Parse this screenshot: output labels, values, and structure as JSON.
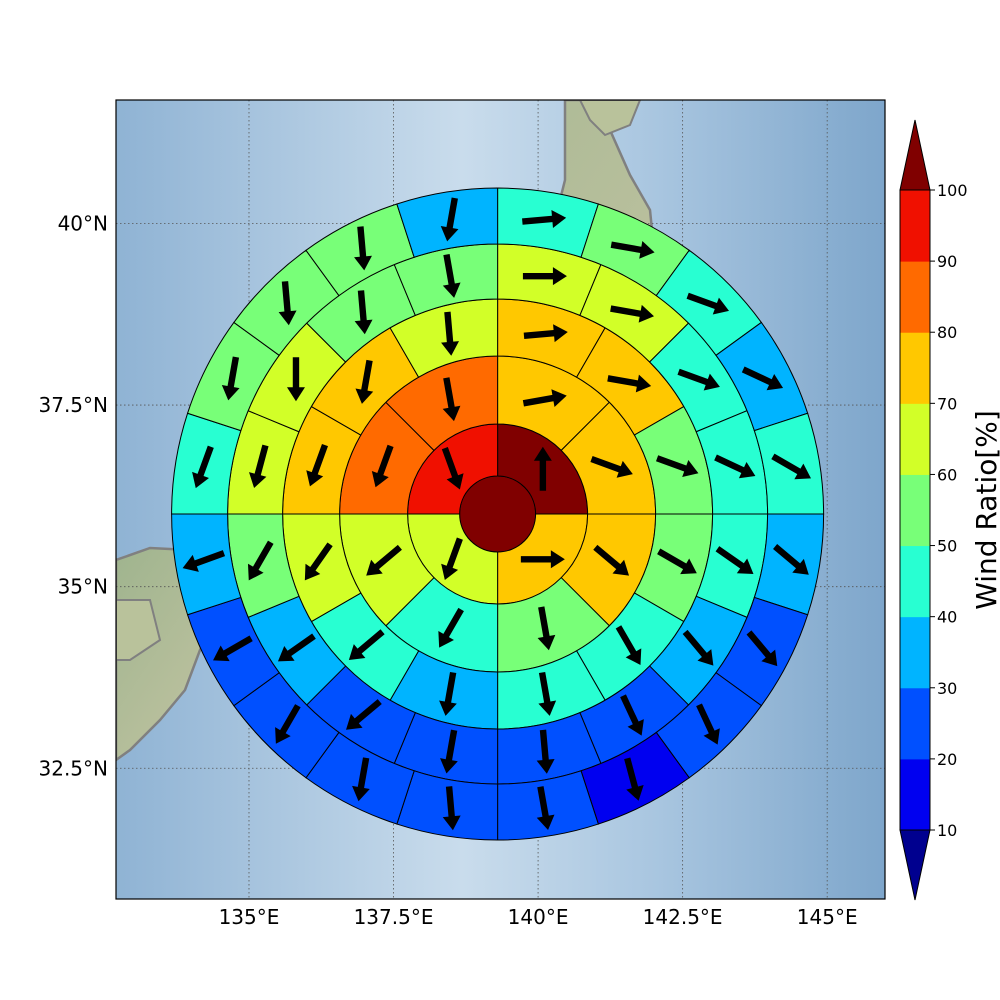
{
  "map": {
    "lon_ticks": [
      "135°E",
      "137.5°E",
      "140°E",
      "142.5°E",
      "145°E"
    ],
    "lat_ticks": [
      "40°N",
      "37.5°N",
      "35°N",
      "32.5°N"
    ],
    "lon_tick_values": [
      135,
      137.5,
      140,
      142.5,
      145
    ],
    "lat_tick_values": [
      40,
      37.5,
      35,
      32.5
    ],
    "lon_range": [
      132.7,
      146.0
    ],
    "lat_range": [
      30.7,
      41.7
    ],
    "center": {
      "lon": 139.3,
      "lat": 36.0
    }
  },
  "colorbar": {
    "label": "Wind Ratio[%]",
    "ticks": [
      "10",
      "20",
      "30",
      "40",
      "50",
      "60",
      "70",
      "80",
      "90",
      "100"
    ],
    "levels": [
      {
        "from": 10,
        "to": 20,
        "color": "#0000f0"
      },
      {
        "from": 20,
        "to": 30,
        "color": "#0050ff"
      },
      {
        "from": 30,
        "to": 40,
        "color": "#00b4ff"
      },
      {
        "from": 40,
        "to": 50,
        "color": "#28ffd2"
      },
      {
        "from": 50,
        "to": 60,
        "color": "#78ff78"
      },
      {
        "from": 60,
        "to": 70,
        "color": "#d2ff28"
      },
      {
        "from": 70,
        "to": 80,
        "color": "#ffc800"
      },
      {
        "from": 80,
        "to": 90,
        "color": "#ff6a00"
      },
      {
        "from": 90,
        "to": 100,
        "color": "#f01000"
      }
    ],
    "over_color": "#800000",
    "under_color": "#00008f"
  },
  "rings": [
    {
      "sectors": 1,
      "colors": [
        "#800000"
      ],
      "arrows": []
    },
    {
      "sectors": 4,
      "colors": [
        "#800000",
        "#ffc800",
        "#d2ff28",
        "#f01000"
      ],
      "arrows": [
        0,
        90,
        200,
        160
      ]
    },
    {
      "sectors": 8,
      "colors": [
        "#ffc800",
        "#ffc800",
        "#ffc800",
        "#78ff78",
        "#28ffd2",
        "#d2ff28",
        "#ff6a00",
        "#ff6a00"
      ],
      "arrows": [
        80,
        110,
        130,
        170,
        210,
        230,
        200,
        170
      ]
    },
    {
      "sectors": 12,
      "colors": [
        "#ffc800",
        "#ffc800",
        "#78ff78",
        "#78ff78",
        "#28ffd2",
        "#28ffd2",
        "#00b4ff",
        "#28ffd2",
        "#d2ff28",
        "#ffc800",
        "#ffc800",
        "#d2ff28"
      ],
      "arrows": [
        85,
        100,
        110,
        120,
        150,
        170,
        190,
        230,
        215,
        200,
        190,
        175
      ]
    },
    {
      "sectors": 16,
      "colors": [
        "#d2ff28",
        "#d2ff28",
        "#28ffd2",
        "#28ffd2",
        "#28ffd2",
        "#00b4ff",
        "#0050ff",
        "#0050ff",
        "#0050ff",
        "#0050ff",
        "#00b4ff",
        "#78ff78",
        "#d2ff28",
        "#d2ff28",
        "#78ff78",
        "#78ff78"
      ],
      "arrows": [
        90,
        100,
        110,
        115,
        125,
        140,
        155,
        175,
        190,
        230,
        235,
        210,
        195,
        180,
        175,
        170
      ]
    },
    {
      "sectors": 20,
      "colors": [
        "#28ffd2",
        "#78ff78",
        "#28ffd2",
        "#00b4ff",
        "#28ffd2",
        "#00b4ff",
        "#0050ff",
        "#0050ff",
        "#0000f0",
        "#0050ff",
        "#0050ff",
        "#0050ff",
        "#0050ff",
        "#0050ff",
        "#00b4ff",
        "#28ffd2",
        "#78ff78",
        "#78ff78",
        "#78ff78",
        "#00b4ff"
      ],
      "arrows": [
        85,
        100,
        110,
        115,
        120,
        130,
        140,
        155,
        165,
        170,
        175,
        190,
        210,
        240,
        250,
        200,
        190,
        175,
        175,
        190
      ]
    }
  ]
}
